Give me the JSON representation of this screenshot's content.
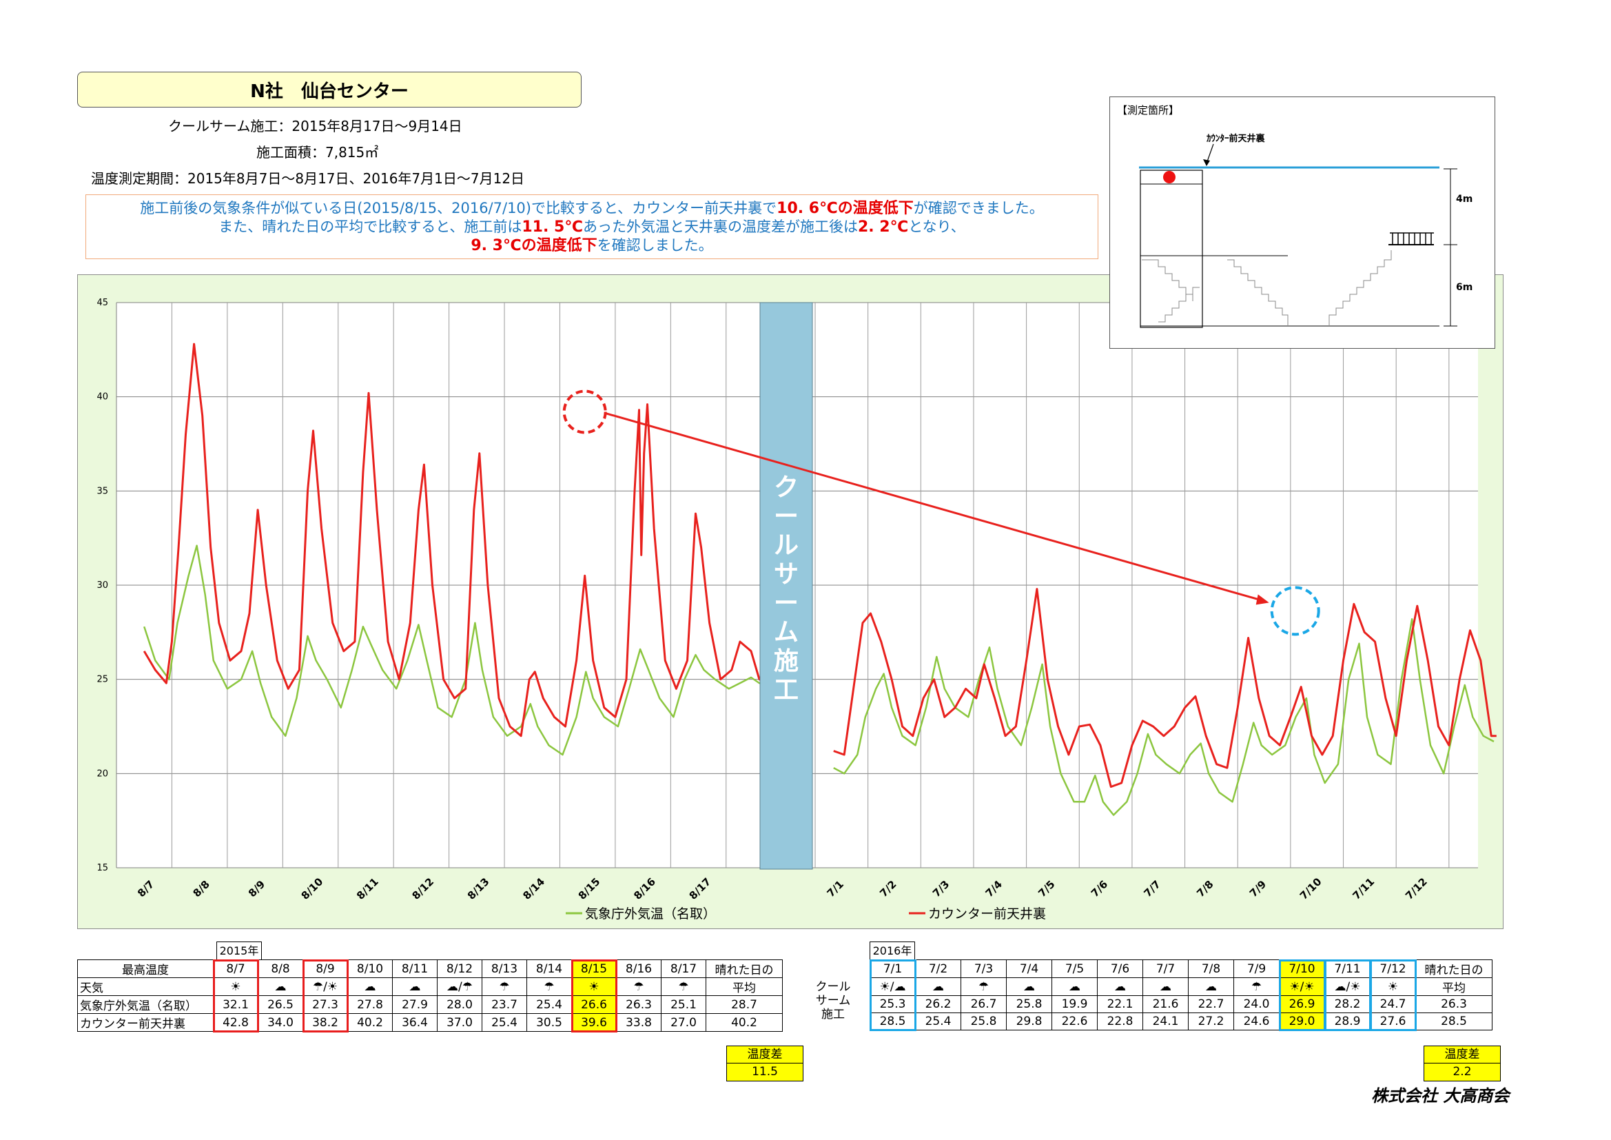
{
  "header": {
    "title": "N社　仙台センター",
    "construction": "クールサーム施工：2015年8月17日～9月14日",
    "area": "施工面積：7,815㎡",
    "period": "温度測定期間：2015年8月7日～8月17日、2016年7月1日～7月12日"
  },
  "note": {
    "line1_a": "施工前後の気象条件が似ている日(2015/8/15、2016/7/10)で比較すると、カウンター前天井裏で",
    "line1_b": "10. 6℃の温度低下",
    "line1_c": "が確認できました。",
    "line2_a": "また、晴れた日の平均で比較すると、施工前は",
    "line2_b": "11. 5℃",
    "line2_c": "あった外気温と天井裏の温度差が施工後は",
    "line2_d": "2. 2℃",
    "line2_e": "となり、",
    "line3_a": "9. 3℃の温度低下",
    "line3_b": "を確認しました。"
  },
  "inset": {
    "title": "【測定箇所】",
    "point_label": "ｶｳﾝﾀｰ前天井裏",
    "dim_upper": "4m",
    "dim_lower": "6m"
  },
  "chart_data": {
    "type": "line",
    "ylim": [
      15,
      45
    ],
    "yticks": [
      15,
      20,
      25,
      30,
      35,
      40,
      45
    ],
    "xlabel": "",
    "ylabel": "",
    "grid": true,
    "legend_position": "bottom",
    "divider_label": "クールサーム施工",
    "categories_2015": [
      "8/7",
      "8/8",
      "8/9",
      "8/10",
      "8/11",
      "8/12",
      "8/13",
      "8/14",
      "8/15",
      "8/16",
      "8/17"
    ],
    "categories_2016": [
      "7/1",
      "7/2",
      "7/3",
      "7/4",
      "7/5",
      "7/6",
      "7/7",
      "7/8",
      "7/9",
      "7/10",
      "7/11",
      "7/12"
    ],
    "series": [
      {
        "name": "気象庁外気温（名取）",
        "color": "#8cc63f",
        "points_2015": [
          [
            0,
            27.8
          ],
          [
            0.2,
            26
          ],
          [
            0.45,
            25
          ],
          [
            0.6,
            28
          ],
          [
            0.8,
            30.5
          ],
          [
            0.95,
            32.1
          ],
          [
            1.1,
            29.5
          ],
          [
            1.25,
            26
          ],
          [
            1.5,
            24.5
          ],
          [
            1.75,
            25
          ],
          [
            1.95,
            26.5
          ],
          [
            2.1,
            24.8
          ],
          [
            2.3,
            23
          ],
          [
            2.55,
            22
          ],
          [
            2.75,
            24
          ],
          [
            2.95,
            27.3
          ],
          [
            3.1,
            26
          ],
          [
            3.3,
            25
          ],
          [
            3.55,
            23.5
          ],
          [
            3.75,
            25.5
          ],
          [
            3.95,
            27.8
          ],
          [
            4.1,
            26.8
          ],
          [
            4.3,
            25.5
          ],
          [
            4.55,
            24.5
          ],
          [
            4.75,
            26
          ],
          [
            4.95,
            27.9
          ],
          [
            5.1,
            26
          ],
          [
            5.3,
            23.5
          ],
          [
            5.55,
            23
          ],
          [
            5.8,
            25
          ],
          [
            5.97,
            28
          ],
          [
            6.1,
            25.5
          ],
          [
            6.3,
            23
          ],
          [
            6.55,
            22
          ],
          [
            6.8,
            22.5
          ],
          [
            6.97,
            23.7
          ],
          [
            7.1,
            22.5
          ],
          [
            7.3,
            21.5
          ],
          [
            7.55,
            21
          ],
          [
            7.8,
            23
          ],
          [
            7.97,
            25.4
          ],
          [
            8.1,
            24
          ],
          [
            8.3,
            23
          ],
          [
            8.55,
            22.5
          ],
          [
            8.75,
            24.5
          ],
          [
            8.95,
            26.6
          ],
          [
            9.1,
            25.5
          ],
          [
            9.3,
            24
          ],
          [
            9.55,
            23
          ],
          [
            9.75,
            25
          ],
          [
            9.95,
            26.3
          ],
          [
            10.1,
            25.5
          ],
          [
            10.3,
            25
          ],
          [
            10.55,
            24.5
          ],
          [
            10.75,
            24.8
          ],
          [
            10.95,
            25.1
          ],
          [
            11.1,
            24.8
          ],
          [
            11.4,
            24.6
          ]
        ],
        "points_2016": [
          [
            0,
            20.3
          ],
          [
            0.2,
            20
          ],
          [
            0.45,
            21
          ],
          [
            0.6,
            23
          ],
          [
            0.8,
            24.5
          ],
          [
            0.95,
            25.3
          ],
          [
            1.1,
            23.5
          ],
          [
            1.3,
            22
          ],
          [
            1.55,
            21.5
          ],
          [
            1.75,
            23.5
          ],
          [
            1.95,
            26.2
          ],
          [
            2.1,
            24.5
          ],
          [
            2.3,
            23.5
          ],
          [
            2.55,
            23
          ],
          [
            2.75,
            25
          ],
          [
            2.95,
            26.7
          ],
          [
            3.1,
            24.5
          ],
          [
            3.3,
            22.5
          ],
          [
            3.55,
            21.5
          ],
          [
            3.75,
            23.5
          ],
          [
            3.95,
            25.8
          ],
          [
            4.1,
            22.5
          ],
          [
            4.3,
            20
          ],
          [
            4.55,
            18.5
          ],
          [
            4.75,
            18.5
          ],
          [
            4.95,
            19.9
          ],
          [
            5.1,
            18.5
          ],
          [
            5.3,
            17.8
          ],
          [
            5.55,
            18.5
          ],
          [
            5.75,
            20
          ],
          [
            5.95,
            22.1
          ],
          [
            6.1,
            21
          ],
          [
            6.3,
            20.5
          ],
          [
            6.55,
            20
          ],
          [
            6.75,
            21
          ],
          [
            6.95,
            21.6
          ],
          [
            7.1,
            20
          ],
          [
            7.3,
            19
          ],
          [
            7.55,
            18.5
          ],
          [
            7.75,
            20.5
          ],
          [
            7.95,
            22.7
          ],
          [
            8.1,
            21.5
          ],
          [
            8.3,
            21
          ],
          [
            8.55,
            21.5
          ],
          [
            8.75,
            23
          ],
          [
            8.95,
            24
          ],
          [
            9.1,
            21
          ],
          [
            9.3,
            19.5
          ],
          [
            9.55,
            20.5
          ],
          [
            9.75,
            25
          ],
          [
            9.95,
            26.9
          ],
          [
            10.1,
            23
          ],
          [
            10.3,
            21
          ],
          [
            10.55,
            20.5
          ],
          [
            10.75,
            25
          ],
          [
            10.95,
            28.2
          ],
          [
            11.1,
            25
          ],
          [
            11.3,
            21.5
          ],
          [
            11.55,
            20
          ],
          [
            11.75,
            22.5
          ],
          [
            11.95,
            24.7
          ],
          [
            12.1,
            23
          ],
          [
            12.3,
            22
          ],
          [
            12.5,
            21.7
          ]
        ]
      },
      {
        "name": "カウンター前天井裏",
        "color": "#e8211d",
        "points_2015": [
          [
            0,
            26.5
          ],
          [
            0.2,
            25.5
          ],
          [
            0.4,
            24.8
          ],
          [
            0.5,
            27
          ],
          [
            0.62,
            32
          ],
          [
            0.75,
            38
          ],
          [
            0.9,
            42.8
          ],
          [
            1.05,
            39
          ],
          [
            1.2,
            32
          ],
          [
            1.35,
            28
          ],
          [
            1.55,
            26
          ],
          [
            1.75,
            26.5
          ],
          [
            1.9,
            28.5
          ],
          [
            2.05,
            34
          ],
          [
            2.2,
            30
          ],
          [
            2.4,
            26
          ],
          [
            2.6,
            24.5
          ],
          [
            2.8,
            25.5
          ],
          [
            2.95,
            35
          ],
          [
            3.05,
            38.2
          ],
          [
            3.2,
            33
          ],
          [
            3.4,
            28
          ],
          [
            3.6,
            26.5
          ],
          [
            3.8,
            27
          ],
          [
            3.95,
            36
          ],
          [
            4.05,
            40.2
          ],
          [
            4.2,
            34
          ],
          [
            4.4,
            27
          ],
          [
            4.6,
            25
          ],
          [
            4.8,
            28
          ],
          [
            4.95,
            34
          ],
          [
            5.05,
            36.4
          ],
          [
            5.2,
            30
          ],
          [
            5.4,
            25
          ],
          [
            5.6,
            24
          ],
          [
            5.8,
            24.5
          ],
          [
            5.95,
            34
          ],
          [
            6.05,
            37
          ],
          [
            6.2,
            30
          ],
          [
            6.4,
            24
          ],
          [
            6.6,
            22.5
          ],
          [
            6.8,
            22
          ],
          [
            6.95,
            25
          ],
          [
            7.05,
            25.4
          ],
          [
            7.2,
            24
          ],
          [
            7.4,
            23
          ],
          [
            7.6,
            22.5
          ],
          [
            7.8,
            26
          ],
          [
            7.95,
            30.5
          ],
          [
            8.1,
            26
          ],
          [
            8.3,
            23.5
          ],
          [
            8.5,
            23
          ],
          [
            8.7,
            25
          ],
          [
            8.85,
            35
          ],
          [
            8.93,
            39.3
          ],
          [
            8.97,
            31.6
          ],
          [
            9.02,
            37
          ],
          [
            9.08,
            39.6
          ],
          [
            9.2,
            33
          ],
          [
            9.4,
            26
          ],
          [
            9.6,
            24.5
          ],
          [
            9.8,
            26
          ],
          [
            9.95,
            33.8
          ],
          [
            10.05,
            32
          ],
          [
            10.2,
            28
          ],
          [
            10.4,
            25
          ],
          [
            10.6,
            25.5
          ],
          [
            10.75,
            27
          ],
          [
            10.95,
            26.5
          ],
          [
            11.1,
            25
          ],
          [
            11.3,
            24.8
          ],
          [
            11.4,
            25
          ]
        ],
        "points_2016": [
          [
            0,
            21.2
          ],
          [
            0.2,
            21
          ],
          [
            0.4,
            25
          ],
          [
            0.55,
            28
          ],
          [
            0.7,
            28.5
          ],
          [
            0.9,
            27
          ],
          [
            1.1,
            25
          ],
          [
            1.3,
            22.5
          ],
          [
            1.5,
            22
          ],
          [
            1.7,
            24
          ],
          [
            1.9,
            25
          ],
          [
            2.1,
            23
          ],
          [
            2.3,
            23.5
          ],
          [
            2.5,
            24.5
          ],
          [
            2.7,
            24
          ],
          [
            2.85,
            25.8
          ],
          [
            3.05,
            24
          ],
          [
            3.25,
            22
          ],
          [
            3.45,
            22.5
          ],
          [
            3.65,
            26
          ],
          [
            3.85,
            29.8
          ],
          [
            4.05,
            25
          ],
          [
            4.25,
            22.5
          ],
          [
            4.45,
            21
          ],
          [
            4.65,
            22.5
          ],
          [
            4.85,
            22.6
          ],
          [
            5.05,
            21.5
          ],
          [
            5.25,
            19.3
          ],
          [
            5.45,
            19.5
          ],
          [
            5.65,
            21.5
          ],
          [
            5.85,
            22.8
          ],
          [
            6.05,
            22.5
          ],
          [
            6.25,
            22
          ],
          [
            6.45,
            22.5
          ],
          [
            6.65,
            23.5
          ],
          [
            6.85,
            24.1
          ],
          [
            7.05,
            22
          ],
          [
            7.25,
            20.5
          ],
          [
            7.45,
            20.3
          ],
          [
            7.65,
            23.5
          ],
          [
            7.85,
            27.2
          ],
          [
            8.05,
            24
          ],
          [
            8.25,
            22
          ],
          [
            8.45,
            21.5
          ],
          [
            8.65,
            23
          ],
          [
            8.85,
            24.6
          ],
          [
            9.05,
            22
          ],
          [
            9.25,
            21
          ],
          [
            9.45,
            22
          ],
          [
            9.65,
            26
          ],
          [
            9.85,
            29
          ],
          [
            10.05,
            27.5
          ],
          [
            10.25,
            27
          ],
          [
            10.45,
            24
          ],
          [
            10.65,
            22
          ],
          [
            10.85,
            26
          ],
          [
            11.05,
            28.9
          ],
          [
            11.25,
            26
          ],
          [
            11.45,
            22.5
          ],
          [
            11.65,
            21.5
          ],
          [
            11.85,
            25
          ],
          [
            12.05,
            27.6
          ],
          [
            12.25,
            26
          ],
          [
            12.45,
            22
          ],
          [
            12.55,
            22
          ]
        ]
      }
    ],
    "annotations": {
      "before_highlight_date": "8/15",
      "after_highlight_date": "7/10"
    }
  },
  "table_2015": {
    "year": "2015年",
    "row_labels": [
      "最高温度",
      "天気",
      "気象庁外気温（名取）",
      "カウンター前天井裏"
    ],
    "dates": [
      "8/7",
      "8/8",
      "8/9",
      "8/10",
      "8/11",
      "8/12",
      "8/13",
      "8/14",
      "8/15",
      "8/16",
      "8/17"
    ],
    "weather": [
      "☀",
      "☁",
      "☂/☀",
      "☁",
      "☁",
      "☁/☂",
      "☂",
      "☂",
      "☀",
      "☂",
      "☂"
    ],
    "outdoor": [
      "32.1",
      "26.5",
      "27.3",
      "27.8",
      "27.9",
      "28.0",
      "23.7",
      "25.4",
      "26.6",
      "26.3",
      "25.1"
    ],
    "ceiling": [
      "42.8",
      "34.0",
      "38.2",
      "40.2",
      "36.4",
      "37.0",
      "25.4",
      "30.5",
      "39.6",
      "33.8",
      "27.0"
    ],
    "avg_header_1": "晴れた日の",
    "avg_header_2": "平均",
    "avg_outdoor": "28.7",
    "avg_ceiling": "40.2",
    "diff_label": "温度差",
    "diff_value": "11.5"
  },
  "middle_label": [
    "クール",
    "サーム",
    "施工"
  ],
  "table_2016": {
    "year": "2016年",
    "dates": [
      "7/1",
      "7/2",
      "7/3",
      "7/4",
      "7/5",
      "7/6",
      "7/7",
      "7/8",
      "7/9",
      "7/10",
      "7/11",
      "7/12"
    ],
    "weather": [
      "☀/☁",
      "☁",
      "☂",
      "☁",
      "☁",
      "☁",
      "☁",
      "☁",
      "☂",
      "☀/☀",
      "☁/☀",
      "☀"
    ],
    "outdoor": [
      "25.3",
      "26.2",
      "26.7",
      "25.8",
      "19.9",
      "22.1",
      "21.6",
      "22.7",
      "24.0",
      "26.9",
      "28.2",
      "24.7"
    ],
    "ceiling": [
      "28.5",
      "25.4",
      "25.8",
      "29.8",
      "22.6",
      "22.8",
      "24.1",
      "27.2",
      "24.6",
      "29.0",
      "28.9",
      "27.6"
    ],
    "avg_header_1": "晴れた日の",
    "avg_header_2": "平均",
    "avg_outdoor": "26.3",
    "avg_ceiling": "28.5",
    "diff_label": "温度差",
    "diff_value": "2.2"
  },
  "footer": {
    "logo": "株式会社 大高商会"
  }
}
